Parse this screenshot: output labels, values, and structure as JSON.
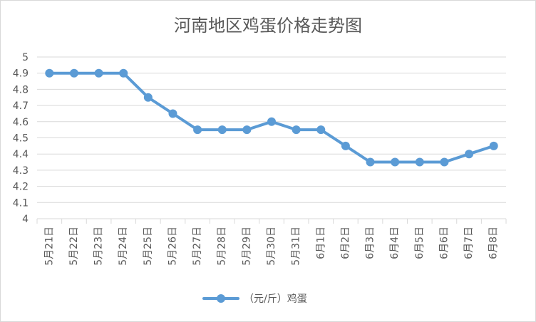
{
  "chart_data": {
    "type": "line",
    "title": "河南地区鸡蛋价格走势图",
    "categories": [
      "5月21日",
      "5月22日",
      "5月23日",
      "5月24日",
      "5月25日",
      "5月26日",
      "5月27日",
      "5月28日",
      "5月29日",
      "5月30日",
      "5月31日",
      "6月1日",
      "6月2日",
      "6月3日",
      "6月4日",
      "6月5日",
      "6月6日",
      "6月7日",
      "6月8日"
    ],
    "series": [
      {
        "name": "（元/斤）鸡蛋",
        "values": [
          4.9,
          4.9,
          4.9,
          4.9,
          4.75,
          4.65,
          4.55,
          4.55,
          4.55,
          4.6,
          4.55,
          4.55,
          4.45,
          4.35,
          4.35,
          4.35,
          4.35,
          4.4,
          4.45
        ],
        "color": "#5b9bd5"
      }
    ],
    "xlabel": "",
    "ylabel": "",
    "ylim": [
      4,
      5
    ],
    "yticks": [
      "4",
      "4.1",
      "4.2",
      "4.3",
      "4.4",
      "4.5",
      "4.6",
      "4.7",
      "4.8",
      "4.9",
      "5"
    ],
    "grid": true,
    "legend_position": "bottom"
  }
}
